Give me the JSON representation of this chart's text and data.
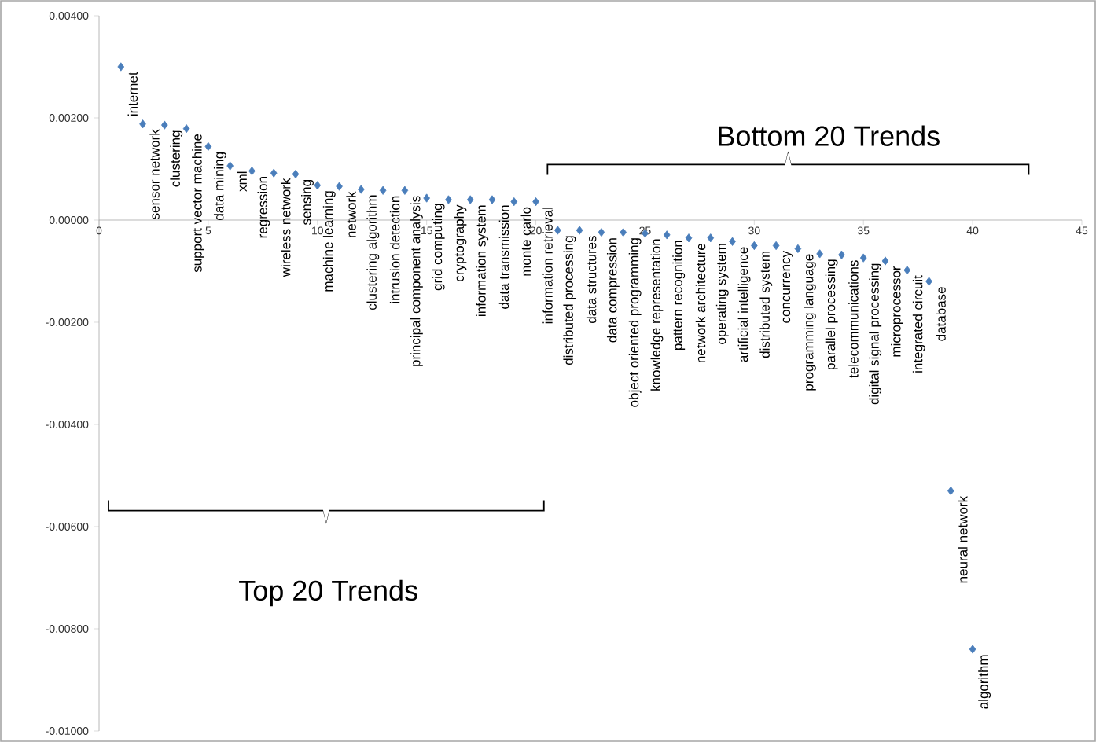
{
  "chart_data": {
    "type": "scatter",
    "color": "#4a7ebb",
    "marker": "diamond",
    "x": [
      1,
      2,
      3,
      4,
      5,
      6,
      7,
      8,
      9,
      10,
      11,
      12,
      13,
      14,
      15,
      16,
      17,
      18,
      19,
      20,
      21,
      22,
      23,
      24,
      25,
      26,
      27,
      28,
      29,
      30,
      31,
      32,
      33,
      34,
      35,
      36,
      37,
      38,
      39,
      40
    ],
    "values": [
      0.003,
      0.00188,
      0.00186,
      0.00179,
      0.00144,
      0.00106,
      0.00096,
      0.00092,
      0.0009,
      0.00068,
      0.00066,
      0.0006,
      0.00058,
      0.00058,
      0.00043,
      0.0004,
      0.0004,
      0.0004,
      0.00036,
      0.00036,
      -0.0002,
      -0.0002,
      -0.00024,
      -0.00024,
      -0.00026,
      -0.00029,
      -0.00035,
      -0.00035,
      -0.00042,
      -0.0005,
      -0.0005,
      -0.00056,
      -0.00066,
      -0.00068,
      -0.00074,
      -0.0008,
      -0.00098,
      -0.0012,
      -0.0053,
      -0.0084
    ],
    "xlim": [
      0,
      45
    ],
    "ylim": [
      -0.01,
      0.004
    ],
    "xticks": [
      0,
      5,
      10,
      15,
      20,
      25,
      30,
      35,
      40,
      45
    ],
    "yticks": [
      {
        "value": -0.01,
        "label": "-0.01000"
      },
      {
        "value": -0.008,
        "label": "-0.00800"
      },
      {
        "value": -0.006,
        "label": "-0.00600"
      },
      {
        "value": -0.004,
        "label": "-0.00400"
      },
      {
        "value": -0.002,
        "label": "-0.00200"
      },
      {
        "value": 0,
        "label": "0.00000"
      },
      {
        "value": 0.002,
        "label": "0.00200"
      },
      {
        "value": 0.004,
        "label": "0.00400"
      }
    ],
    "annotations": [
      {
        "text": "internet",
        "x": 1,
        "y": 0.003
      },
      {
        "text": "sensor network",
        "x": 2,
        "y": 0.00188
      },
      {
        "text": "clustering",
        "x": 3,
        "y": 0.00186
      },
      {
        "text": "support vector machine",
        "x": 4,
        "y": 0.00179
      },
      {
        "text": "data mining",
        "x": 5,
        "y": 0.00144
      },
      {
        "text": "xml",
        "x": 6,
        "y": 0.00106
      },
      {
        "text": "regression",
        "x": 7,
        "y": 0.00096
      },
      {
        "text": "wireless network",
        "x": 8,
        "y": 0.00092
      },
      {
        "text": "sensing",
        "x": 9,
        "y": 0.0009
      },
      {
        "text": "machine learning",
        "x": 10,
        "y": 0.00068
      },
      {
        "text": "network",
        "x": 11,
        "y": 0.00066
      },
      {
        "text": "clustering algorithm",
        "x": 12,
        "y": 0.0006
      },
      {
        "text": "intrusion detection",
        "x": 13,
        "y": 0.00058
      },
      {
        "text": "principal component analysis",
        "x": 14,
        "y": 0.00058
      },
      {
        "text": "grid computing",
        "x": 15,
        "y": 0.00043
      },
      {
        "text": "cryptography",
        "x": 16,
        "y": 0.0004
      },
      {
        "text": "information system",
        "x": 17,
        "y": 0.0004
      },
      {
        "text": "data transmission",
        "x": 18,
        "y": 0.0004
      },
      {
        "text": "monte carlo",
        "x": 19,
        "y": 0.00036
      },
      {
        "text": "information retrieval",
        "x": 20,
        "y": 0.00036
      },
      {
        "text": "distributed processing",
        "x": 21,
        "y": -0.0002
      },
      {
        "text": "data structures",
        "x": 22,
        "y": -0.0002
      },
      {
        "text": "data compression",
        "x": 23,
        "y": -0.00024
      },
      {
        "text": "object oriented programming",
        "x": 24,
        "y": -0.00024
      },
      {
        "text": "knowledge representation",
        "x": 25,
        "y": -0.00026
      },
      {
        "text": "pattern recognition",
        "x": 26,
        "y": -0.00029
      },
      {
        "text": "network architecture",
        "x": 27,
        "y": -0.00035
      },
      {
        "text": "operating system",
        "x": 28,
        "y": -0.00035
      },
      {
        "text": "artificial intelligence",
        "x": 29,
        "y": -0.00042
      },
      {
        "text": "distributed system",
        "x": 30,
        "y": -0.0005
      },
      {
        "text": "concurrency",
        "x": 31,
        "y": -0.0005
      },
      {
        "text": "programming language",
        "x": 32,
        "y": -0.00056
      },
      {
        "text": "parallel processing",
        "x": 33,
        "y": -0.00066
      },
      {
        "text": "telecommunications",
        "x": 34,
        "y": -0.00068
      },
      {
        "text": "digital signal processing",
        "x": 35,
        "y": -0.00074
      },
      {
        "text": "microprocessor",
        "x": 36,
        "y": -0.0008
      },
      {
        "text": "integrated circuit",
        "x": 37,
        "y": -0.00098
      },
      {
        "text": "database",
        "x": 38,
        "y": -0.0012
      },
      {
        "text": "neural network",
        "x": 39,
        "y": -0.0053
      },
      {
        "text": "algorithm",
        "x": 40,
        "y": -0.0084
      },
      "Top 20 Trends",
      "Bottom 20 Trends"
    ]
  }
}
